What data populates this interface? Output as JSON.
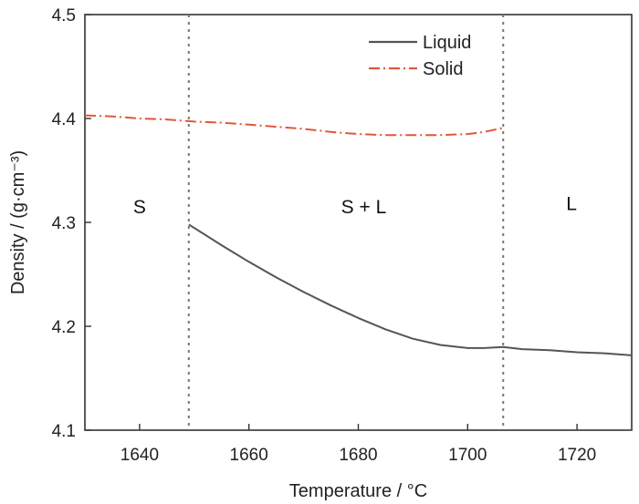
{
  "chart_data": {
    "type": "line",
    "xlabel": "Temperature / °C",
    "ylabel": "Density / (g·cm⁻³)",
    "xlim": [
      1630,
      1730
    ],
    "ylim": [
      4.1,
      4.5
    ],
    "xticks": [
      1640,
      1660,
      1680,
      1700,
      1720
    ],
    "yticks": [
      4.1,
      4.2,
      4.3,
      4.4,
      4.5
    ],
    "xtick_labels": [
      "1640",
      "1660",
      "1680",
      "1700",
      "1720"
    ],
    "ytick_labels": [
      "4.1",
      "4.2",
      "4.3",
      "4.4",
      "4.5"
    ],
    "grid": false,
    "legend_position": "top-right",
    "phase_boundaries": [
      1649,
      1706.5
    ],
    "regions": [
      {
        "label": "S",
        "x": 1640,
        "y": 4.315
      },
      {
        "label": "S + L",
        "x": 1681,
        "y": 4.315
      },
      {
        "label": "L",
        "x": 1719,
        "y": 4.318
      }
    ],
    "series": [
      {
        "name": "Liquid",
        "color": "#555555",
        "dash": "solid",
        "x": [
          1649,
          1655,
          1660,
          1665,
          1670,
          1675,
          1680,
          1685,
          1690,
          1695,
          1700,
          1703,
          1706.5,
          1710,
          1715,
          1720,
          1725,
          1730
        ],
        "y": [
          4.298,
          4.278,
          4.262,
          4.247,
          4.233,
          4.22,
          4.208,
          4.197,
          4.188,
          4.182,
          4.179,
          4.179,
          4.18,
          4.178,
          4.177,
          4.175,
          4.174,
          4.172
        ]
      },
      {
        "name": "Solid",
        "color": "#e0583a",
        "dash": "dash-dot",
        "x": [
          1630,
          1635,
          1640,
          1645,
          1650,
          1655,
          1660,
          1665,
          1670,
          1675,
          1680,
          1685,
          1690,
          1695,
          1700,
          1703,
          1706.5
        ],
        "y": [
          4.403,
          4.402,
          4.4,
          4.399,
          4.397,
          4.396,
          4.394,
          4.392,
          4.39,
          4.387,
          4.385,
          4.384,
          4.384,
          4.384,
          4.385,
          4.387,
          4.391
        ]
      }
    ]
  }
}
